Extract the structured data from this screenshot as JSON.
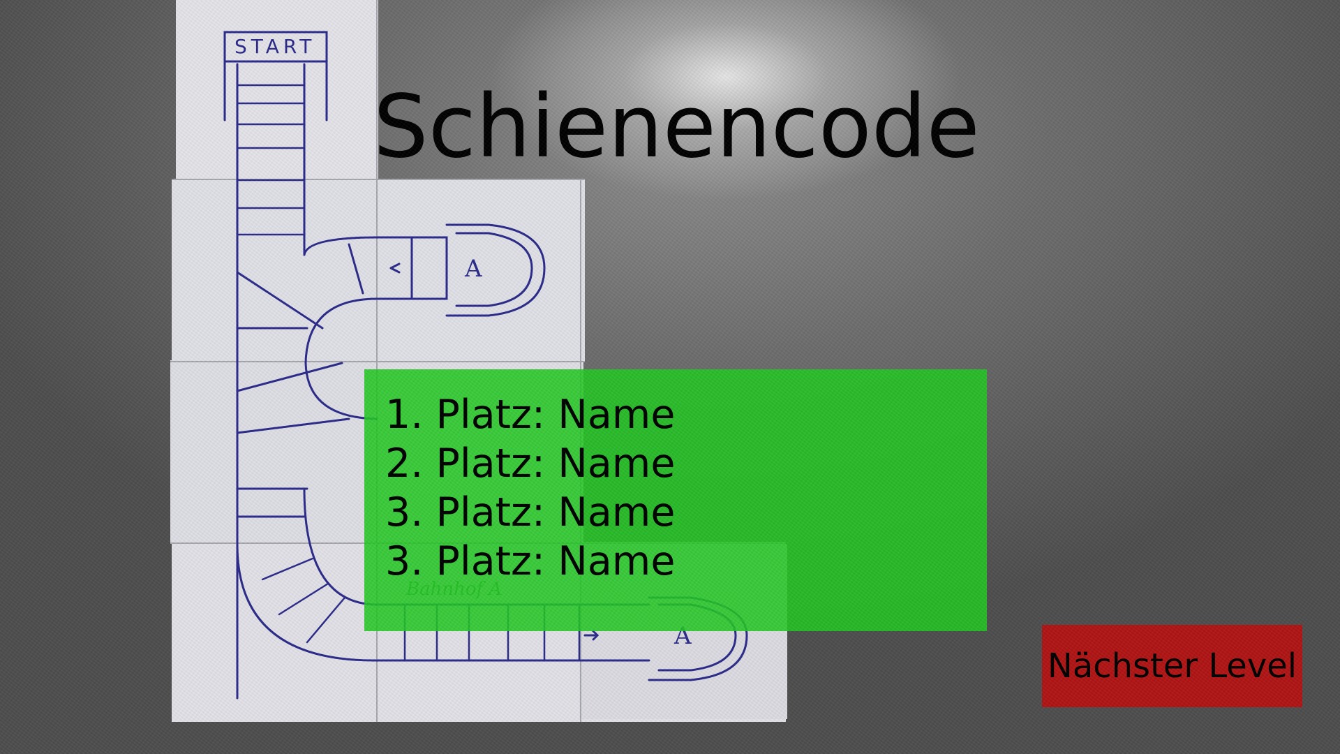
{
  "title": "Schienencode",
  "ranking": [
    {
      "label": "1. Platz: Name"
    },
    {
      "label": "2. Platz: Name"
    },
    {
      "label": "3. Platz: Name"
    },
    {
      "label": "3. Platz: Name"
    }
  ],
  "next_level_button": {
    "label": "Nächster Level"
  },
  "background": {
    "start_sign": "START",
    "station_label": "Bahnhof A",
    "station_marker": "A"
  },
  "colors": {
    "ranking_panel": "#22c822",
    "next_level_button": "#b01414",
    "track_ink": "#2a2a8a",
    "paper": "#e4e4ea"
  }
}
